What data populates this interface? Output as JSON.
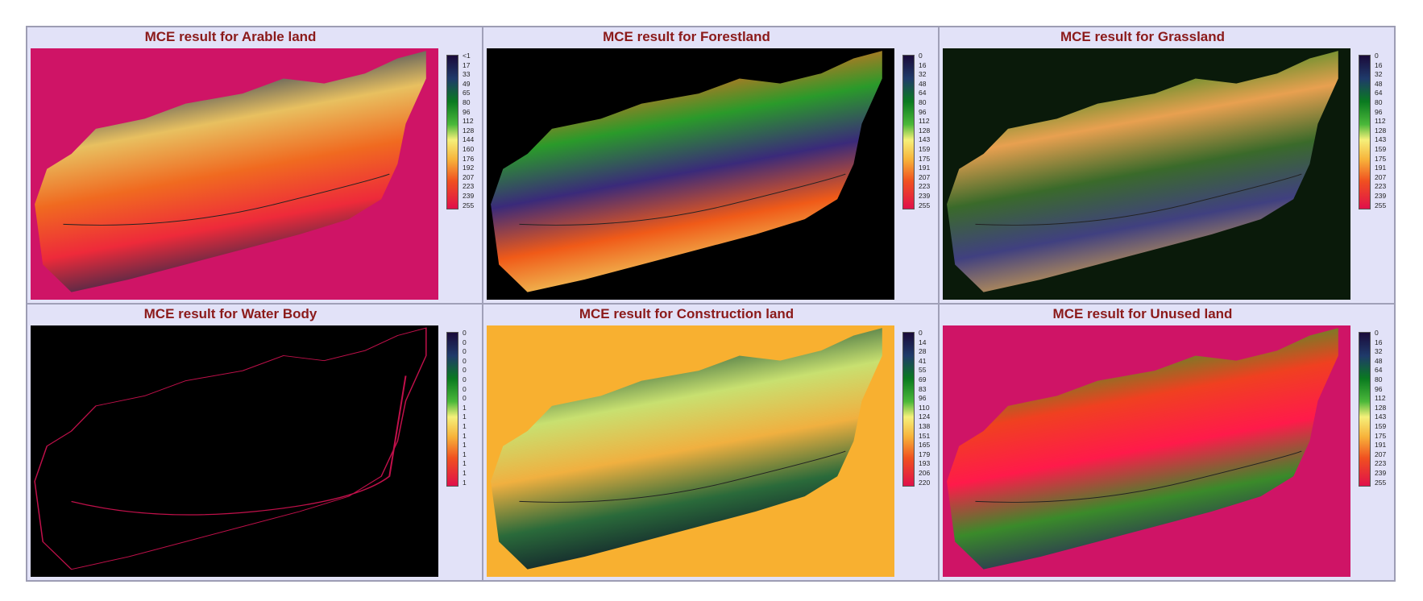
{
  "panels": [
    {
      "title": "MCE result for Arable land",
      "legend": [
        "<1",
        "17",
        "33",
        "49",
        "65",
        "80",
        "96",
        "112",
        "128",
        "144",
        "160",
        "176",
        "192",
        "207",
        "223",
        "239",
        "255"
      ]
    },
    {
      "title": "MCE result for Forestland",
      "legend": [
        "0",
        "16",
        "32",
        "48",
        "64",
        "80",
        "96",
        "112",
        "128",
        "143",
        "159",
        "175",
        "191",
        "207",
        "223",
        "239",
        "255"
      ]
    },
    {
      "title": "MCE result for Grassland",
      "legend": [
        "0",
        "16",
        "32",
        "48",
        "64",
        "80",
        "96",
        "112",
        "128",
        "143",
        "159",
        "175",
        "191",
        "207",
        "223",
        "239",
        "255"
      ]
    },
    {
      "title": "MCE result for Water Body",
      "legend": [
        "0",
        "0",
        "0",
        "0",
        "0",
        "0",
        "0",
        "0",
        "1",
        "1",
        "1",
        "1",
        "1",
        "1",
        "1",
        "1",
        "1"
      ]
    },
    {
      "title": "MCE result for Construction land",
      "legend": [
        "0",
        "14",
        "28",
        "41",
        "55",
        "69",
        "83",
        "96",
        "110",
        "124",
        "138",
        "151",
        "165",
        "179",
        "193",
        "206",
        "220"
      ]
    },
    {
      "title": "MCE result for Unused land",
      "legend": [
        "0",
        "16",
        "32",
        "48",
        "64",
        "80",
        "96",
        "112",
        "128",
        "143",
        "159",
        "175",
        "191",
        "207",
        "223",
        "239",
        "255"
      ]
    }
  ]
}
